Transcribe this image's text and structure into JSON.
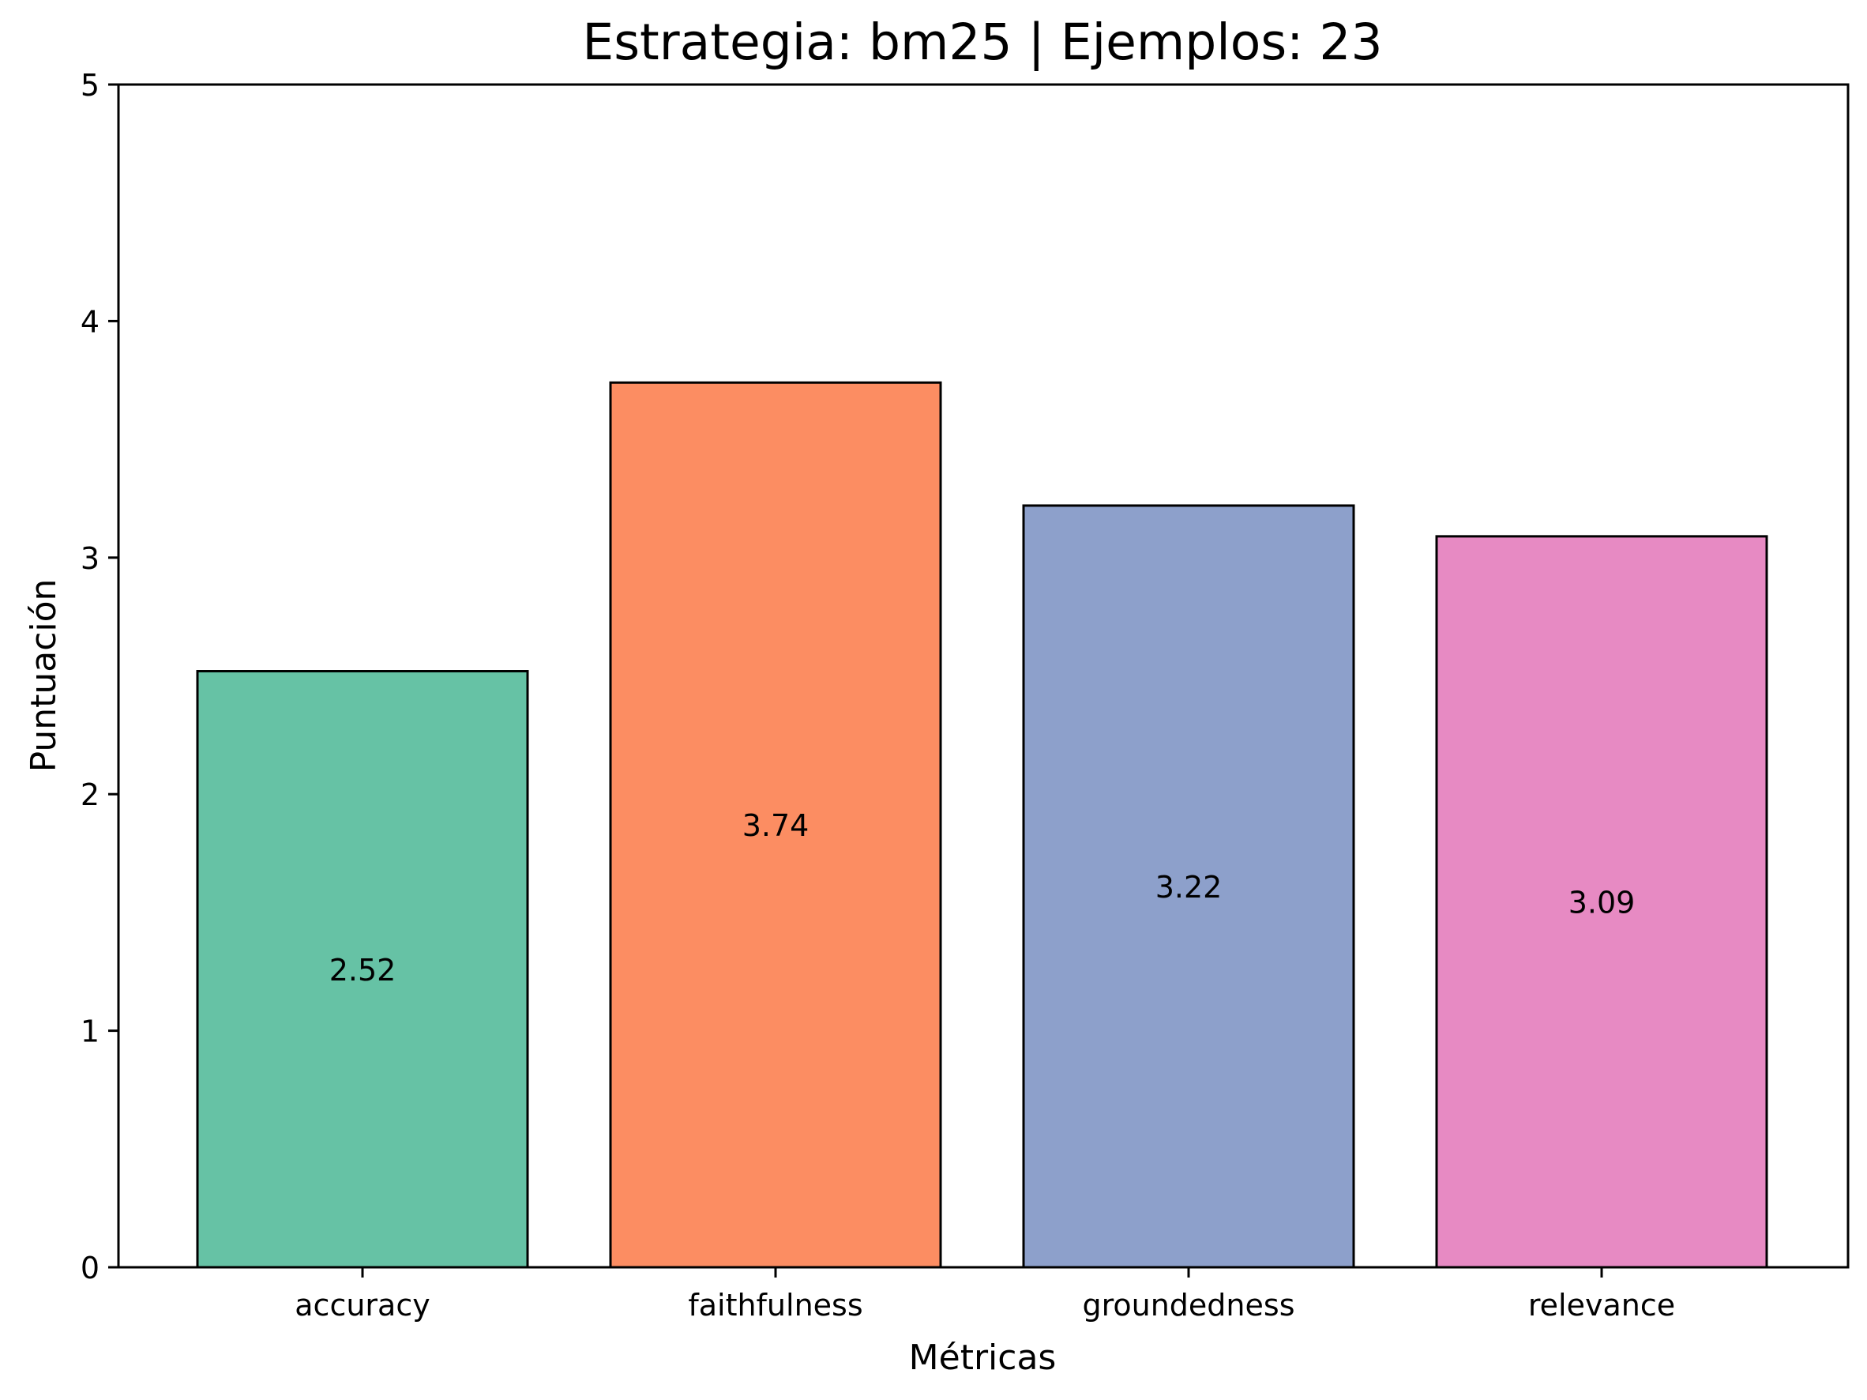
{
  "chart_data": {
    "type": "bar",
    "title": "Estrategia: bm25 | Ejemplos: 23",
    "xlabel": "Métricas",
    "ylabel": "Puntuación",
    "ylim": [
      0,
      5
    ],
    "yticks": [
      0,
      1,
      2,
      3,
      4,
      5
    ],
    "grid": false,
    "categories": [
      "accuracy",
      "faithfulness",
      "groundedness",
      "relevance"
    ],
    "values": [
      2.52,
      3.74,
      3.22,
      3.09
    ],
    "value_labels": [
      "2.52",
      "3.74",
      "3.22",
      "3.09"
    ],
    "colors": [
      "#66c2a5",
      "#fc8d62",
      "#8da0cb",
      "#e78ac3"
    ],
    "edge_color": "#000000"
  }
}
